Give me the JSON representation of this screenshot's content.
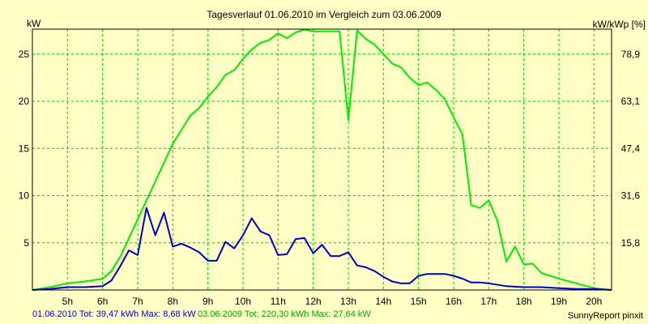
{
  "header": {
    "title": "Tagesverlauf 01.06.2010 im Vergleich zum 03.06.2009",
    "left_unit": "kW",
    "right_unit": "kW/kWp [%]"
  },
  "footer": {
    "series1_summary": "01.06.2010 Tot: 39,47 kWh Max: 8,68 kW",
    "series2_summary": "03.06.2009 Tot: 220,30 kWh Max: 27,64 kW",
    "credit": "SunnyReport pinxit"
  },
  "colors": {
    "background": "#FFFFC6",
    "plot_background": "#FFFFC6",
    "grid": "#00CC00",
    "series_2010": "#0000CC",
    "series_2009": "#00EE00",
    "footer_2010": "#0000CC",
    "footer_2009": "#00AA00"
  },
  "chart_data": {
    "type": "line",
    "title": "Tagesverlauf 01.06.2010 im Vergleich zum 03.06.2009",
    "xlabel": "",
    "ylabel": "kW",
    "y2label": "kW/kWp [%]",
    "xlim": [
      4.0,
      20.5
    ],
    "ylim": [
      0,
      27.64
    ],
    "xticks": [
      5,
      6,
      7,
      8,
      9,
      10,
      11,
      12,
      13,
      14,
      15,
      16,
      17,
      18,
      19,
      20
    ],
    "xticklabels": [
      "5h",
      "6h",
      "7h",
      "8h",
      "9h",
      "10h",
      "11h",
      "12h",
      "13h",
      "14h",
      "15h",
      "16h",
      "17h",
      "18h",
      "19h",
      "20h"
    ],
    "yticks": [
      0,
      5,
      10,
      15,
      20,
      25
    ],
    "yticklabels": [
      "",
      "5",
      "10",
      "15",
      "20",
      "25"
    ],
    "y2ticks": [
      0,
      5,
      10,
      15,
      20,
      25
    ],
    "y2ticklabels": [
      "",
      "15,8",
      "31,6",
      "47,4",
      "63,1",
      "78,9"
    ],
    "grid": true,
    "legend": "none",
    "series": [
      {
        "name": "01.06.2010",
        "color": "#0000CC",
        "x": [
          4.0,
          4.5,
          5.0,
          5.5,
          6.0,
          6.25,
          6.5,
          6.75,
          7.0,
          7.25,
          7.5,
          7.75,
          8.0,
          8.25,
          8.5,
          8.75,
          9.0,
          9.25,
          9.5,
          9.75,
          10.0,
          10.25,
          10.5,
          10.75,
          11.0,
          11.25,
          11.5,
          11.75,
          12.0,
          12.25,
          12.5,
          12.75,
          13.0,
          13.25,
          13.5,
          13.75,
          14.0,
          14.25,
          14.5,
          14.75,
          15.0,
          15.25,
          15.5,
          15.75,
          16.0,
          16.25,
          16.5,
          16.75,
          17.0,
          17.5,
          18.0,
          18.5,
          19.0,
          19.5,
          20.0,
          20.5
        ],
        "y": [
          0.0,
          0.1,
          0.3,
          0.3,
          0.4,
          1.0,
          2.5,
          4.2,
          3.7,
          8.7,
          5.8,
          8.2,
          4.6,
          4.9,
          4.5,
          4.0,
          3.1,
          3.1,
          5.1,
          4.4,
          5.8,
          7.6,
          6.2,
          5.8,
          3.7,
          3.8,
          5.4,
          5.5,
          3.9,
          4.8,
          3.6,
          3.6,
          4.0,
          2.6,
          2.4,
          2.0,
          1.4,
          0.9,
          0.7,
          0.7,
          1.5,
          1.7,
          1.7,
          1.7,
          1.5,
          1.2,
          0.8,
          0.8,
          0.7,
          0.4,
          0.3,
          0.3,
          0.2,
          0.1,
          0.1,
          0.0
        ]
      },
      {
        "name": "03.06.2009",
        "color": "#00EE00",
        "x": [
          4.0,
          4.5,
          5.0,
          5.5,
          6.0,
          6.25,
          6.5,
          6.75,
          7.0,
          7.25,
          7.5,
          7.75,
          8.0,
          8.25,
          8.5,
          8.75,
          9.0,
          9.25,
          9.5,
          9.75,
          10.0,
          10.25,
          10.5,
          10.75,
          11.0,
          11.25,
          11.5,
          11.75,
          12.0,
          12.25,
          12.5,
          12.75,
          13.0,
          13.25,
          13.5,
          13.75,
          14.0,
          14.25,
          14.5,
          14.75,
          15.0,
          15.25,
          15.5,
          15.75,
          16.0,
          16.25,
          16.5,
          16.75,
          17.0,
          17.25,
          17.5,
          17.75,
          18.0,
          18.25,
          18.5,
          19.0,
          19.5,
          20.0,
          20.5
        ],
        "y": [
          0.0,
          0.3,
          0.7,
          0.9,
          1.2,
          2.0,
          3.5,
          5.5,
          7.5,
          9.5,
          11.5,
          13.5,
          15.5,
          17.0,
          18.5,
          19.3,
          20.5,
          21.5,
          22.8,
          23.3,
          24.5,
          25.5,
          26.2,
          26.5,
          27.2,
          26.7,
          27.3,
          27.6,
          27.4,
          27.4,
          27.4,
          27.4,
          18.0,
          27.5,
          26.6,
          26.0,
          25.0,
          24.0,
          23.6,
          22.5,
          21.7,
          22.0,
          21.2,
          20.2,
          18.3,
          16.5,
          9.0,
          8.7,
          9.5,
          7.3,
          3.0,
          4.6,
          2.7,
          2.8,
          1.8,
          1.2,
          0.7,
          0.2,
          0.0
        ]
      }
    ]
  }
}
